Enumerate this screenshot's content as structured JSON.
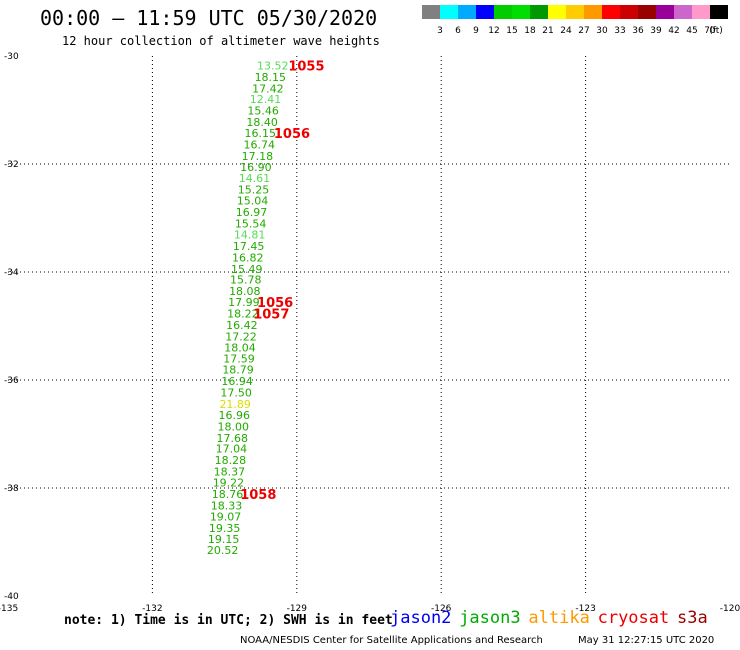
{
  "header": {
    "title": "00:00 – 11:59 UTC 05/30/2020",
    "subtitle": "12 hour collection of altimeter wave heights"
  },
  "legend": {
    "swatches": [
      {
        "color": "#808080",
        "label": "3"
      },
      {
        "color": "#00ffff",
        "label": "6"
      },
      {
        "color": "#00aaff",
        "label": "9"
      },
      {
        "color": "#0000ff",
        "label": "12"
      },
      {
        "color": "#00cc00",
        "label": "15"
      },
      {
        "color": "#00dd00",
        "label": "18"
      },
      {
        "color": "#009900",
        "label": "21"
      },
      {
        "color": "#ffff00",
        "label": "24"
      },
      {
        "color": "#ffcc00",
        "label": "27"
      },
      {
        "color": "#ff9900",
        "label": "30"
      },
      {
        "color": "#ff0000",
        "label": "33"
      },
      {
        "color": "#cc0000",
        "label": "36"
      },
      {
        "color": "#990000",
        "label": "39"
      },
      {
        "color": "#990099",
        "label": "42"
      },
      {
        "color": "#cc66cc",
        "label": "45"
      },
      {
        "color": "#ff99cc",
        "label": "70"
      },
      {
        "color": "#000000",
        "label": ""
      }
    ],
    "unit": "(ft)"
  },
  "chart_data": {
    "type": "scatter",
    "title": "00:00 – 11:59 UTC 05/30/2020",
    "subtitle": "12 hour collection of altimeter wave heights",
    "xlim": [
      -135,
      -120
    ],
    "ylim": [
      -40,
      -30
    ],
    "x_ticks": [
      "-135",
      "-132",
      "-129",
      "-126",
      "-123",
      "-120"
    ],
    "y_ticks": [
      "-30",
      "-32",
      "-34",
      "-36",
      "-38",
      "-40"
    ],
    "grid": true,
    "swh_readings": [
      {
        "lon": -129.5,
        "lat": -30.18,
        "text": "13.52",
        "color": "#55dd55"
      },
      {
        "lon": -129.55,
        "lat": -30.39,
        "text": "18.15",
        "color": "#22aa00"
      },
      {
        "lon": -129.6,
        "lat": -30.6,
        "text": "17.42",
        "color": "#22aa00"
      },
      {
        "lon": -129.65,
        "lat": -30.8,
        "text": "12.41",
        "color": "#55dd55"
      },
      {
        "lon": -129.7,
        "lat": -31.01,
        "text": "15.46",
        "color": "#22aa00"
      },
      {
        "lon": -129.72,
        "lat": -31.22,
        "text": "18.40",
        "color": "#22aa00"
      },
      {
        "lon": -129.76,
        "lat": -31.43,
        "text": "16.15",
        "color": "#22aa00"
      },
      {
        "lon": -129.78,
        "lat": -31.64,
        "text": "16.74",
        "color": "#22aa00"
      },
      {
        "lon": -129.82,
        "lat": -31.85,
        "text": "17.18",
        "color": "#22aa00"
      },
      {
        "lon": -129.85,
        "lat": -32.06,
        "text": "16.90",
        "color": "#22aa00"
      },
      {
        "lon": -129.88,
        "lat": -32.26,
        "text": "14.61",
        "color": "#55dd55"
      },
      {
        "lon": -129.9,
        "lat": -32.47,
        "text": "15.25",
        "color": "#22aa00"
      },
      {
        "lon": -129.92,
        "lat": -32.68,
        "text": "15.04",
        "color": "#22aa00"
      },
      {
        "lon": -129.94,
        "lat": -32.89,
        "text": "16.97",
        "color": "#22aa00"
      },
      {
        "lon": -129.96,
        "lat": -33.1,
        "text": "15.54",
        "color": "#22aa00"
      },
      {
        "lon": -129.98,
        "lat": -33.31,
        "text": "14.81",
        "color": "#55dd55"
      },
      {
        "lon": -130.0,
        "lat": -33.52,
        "text": "17.45",
        "color": "#22aa00"
      },
      {
        "lon": -130.02,
        "lat": -33.73,
        "text": "16.82",
        "color": "#22aa00"
      },
      {
        "lon": -130.04,
        "lat": -33.94,
        "text": "15.49",
        "color": "#22aa00"
      },
      {
        "lon": -130.06,
        "lat": -34.14,
        "text": "15.78",
        "color": "#22aa00"
      },
      {
        "lon": -130.08,
        "lat": -34.35,
        "text": "18.08",
        "color": "#22aa00"
      },
      {
        "lon": -130.1,
        "lat": -34.56,
        "text": "17.99",
        "color": "#22aa00"
      },
      {
        "lon": -130.12,
        "lat": -34.77,
        "text": "18.22",
        "color": "#22aa00"
      },
      {
        "lon": -130.14,
        "lat": -34.98,
        "text": "16.42",
        "color": "#22aa00"
      },
      {
        "lon": -130.16,
        "lat": -35.19,
        "text": "17.22",
        "color": "#22aa00"
      },
      {
        "lon": -130.18,
        "lat": -35.4,
        "text": "18.04",
        "color": "#22aa00"
      },
      {
        "lon": -130.2,
        "lat": -35.6,
        "text": "17.59",
        "color": "#22aa00"
      },
      {
        "lon": -130.22,
        "lat": -35.81,
        "text": "18.79",
        "color": "#22aa00"
      },
      {
        "lon": -130.24,
        "lat": -36.02,
        "text": "16.94",
        "color": "#22aa00"
      },
      {
        "lon": -130.26,
        "lat": -36.23,
        "text": "17.50",
        "color": "#22aa00"
      },
      {
        "lon": -130.28,
        "lat": -36.44,
        "text": "21.89",
        "color": "#dddd00"
      },
      {
        "lon": -130.3,
        "lat": -36.65,
        "text": "16.96",
        "color": "#22aa00"
      },
      {
        "lon": -130.32,
        "lat": -36.86,
        "text": "18.00",
        "color": "#22aa00"
      },
      {
        "lon": -130.34,
        "lat": -37.07,
        "text": "17.68",
        "color": "#22aa00"
      },
      {
        "lon": -130.36,
        "lat": -37.27,
        "text": "17.04",
        "color": "#22aa00"
      },
      {
        "lon": -130.38,
        "lat": -37.48,
        "text": "18.28",
        "color": "#22aa00"
      },
      {
        "lon": -130.4,
        "lat": -37.69,
        "text": "18.37",
        "color": "#22aa00"
      },
      {
        "lon": -130.42,
        "lat": -37.9,
        "text": "19.22",
        "color": "#22aa00"
      },
      {
        "lon": -130.44,
        "lat": -38.11,
        "text": "18.76",
        "color": "#22aa00"
      },
      {
        "lon": -130.46,
        "lat": -38.32,
        "text": "18.33",
        "color": "#22aa00"
      },
      {
        "lon": -130.48,
        "lat": -38.53,
        "text": "19.07",
        "color": "#22aa00"
      },
      {
        "lon": -130.5,
        "lat": -38.74,
        "text": "19.35",
        "color": "#22aa00"
      },
      {
        "lon": -130.52,
        "lat": -38.94,
        "text": "19.15",
        "color": "#22aa00"
      },
      {
        "lon": -130.54,
        "lat": -39.15,
        "text": "20.52",
        "color": "#22aa00"
      }
    ],
    "pass_markers": [
      {
        "lon": -128.8,
        "lat": -30.18,
        "text": "1055",
        "color": "#ee0000"
      },
      {
        "lon": -129.1,
        "lat": -31.43,
        "text": "1056",
        "color": "#ee0000"
      },
      {
        "lon": -129.45,
        "lat": -34.56,
        "text": "1056",
        "color": "#ee0000"
      },
      {
        "lon": -129.53,
        "lat": -34.77,
        "text": "1057",
        "color": "#ee0000"
      },
      {
        "lon": -129.8,
        "lat": -38.11,
        "text": "1058",
        "color": "#ee0000"
      }
    ]
  },
  "footer": {
    "note": "note: 1) Time is in UTC; 2) SWH is in feet",
    "satellites": [
      {
        "name": "jason2",
        "color": "#0000ee"
      },
      {
        "name": "jason3",
        "color": "#00aa00"
      },
      {
        "name": "altika",
        "color": "#ff9900"
      },
      {
        "name": "cryosat",
        "color": "#ee0000"
      },
      {
        "name": "s3a",
        "color": "#990000"
      }
    ],
    "credit": "NOAA/NESDIS Center for Satellite Applications and Research",
    "timestamp": "May 31 12:27:15 UTC 2020"
  }
}
